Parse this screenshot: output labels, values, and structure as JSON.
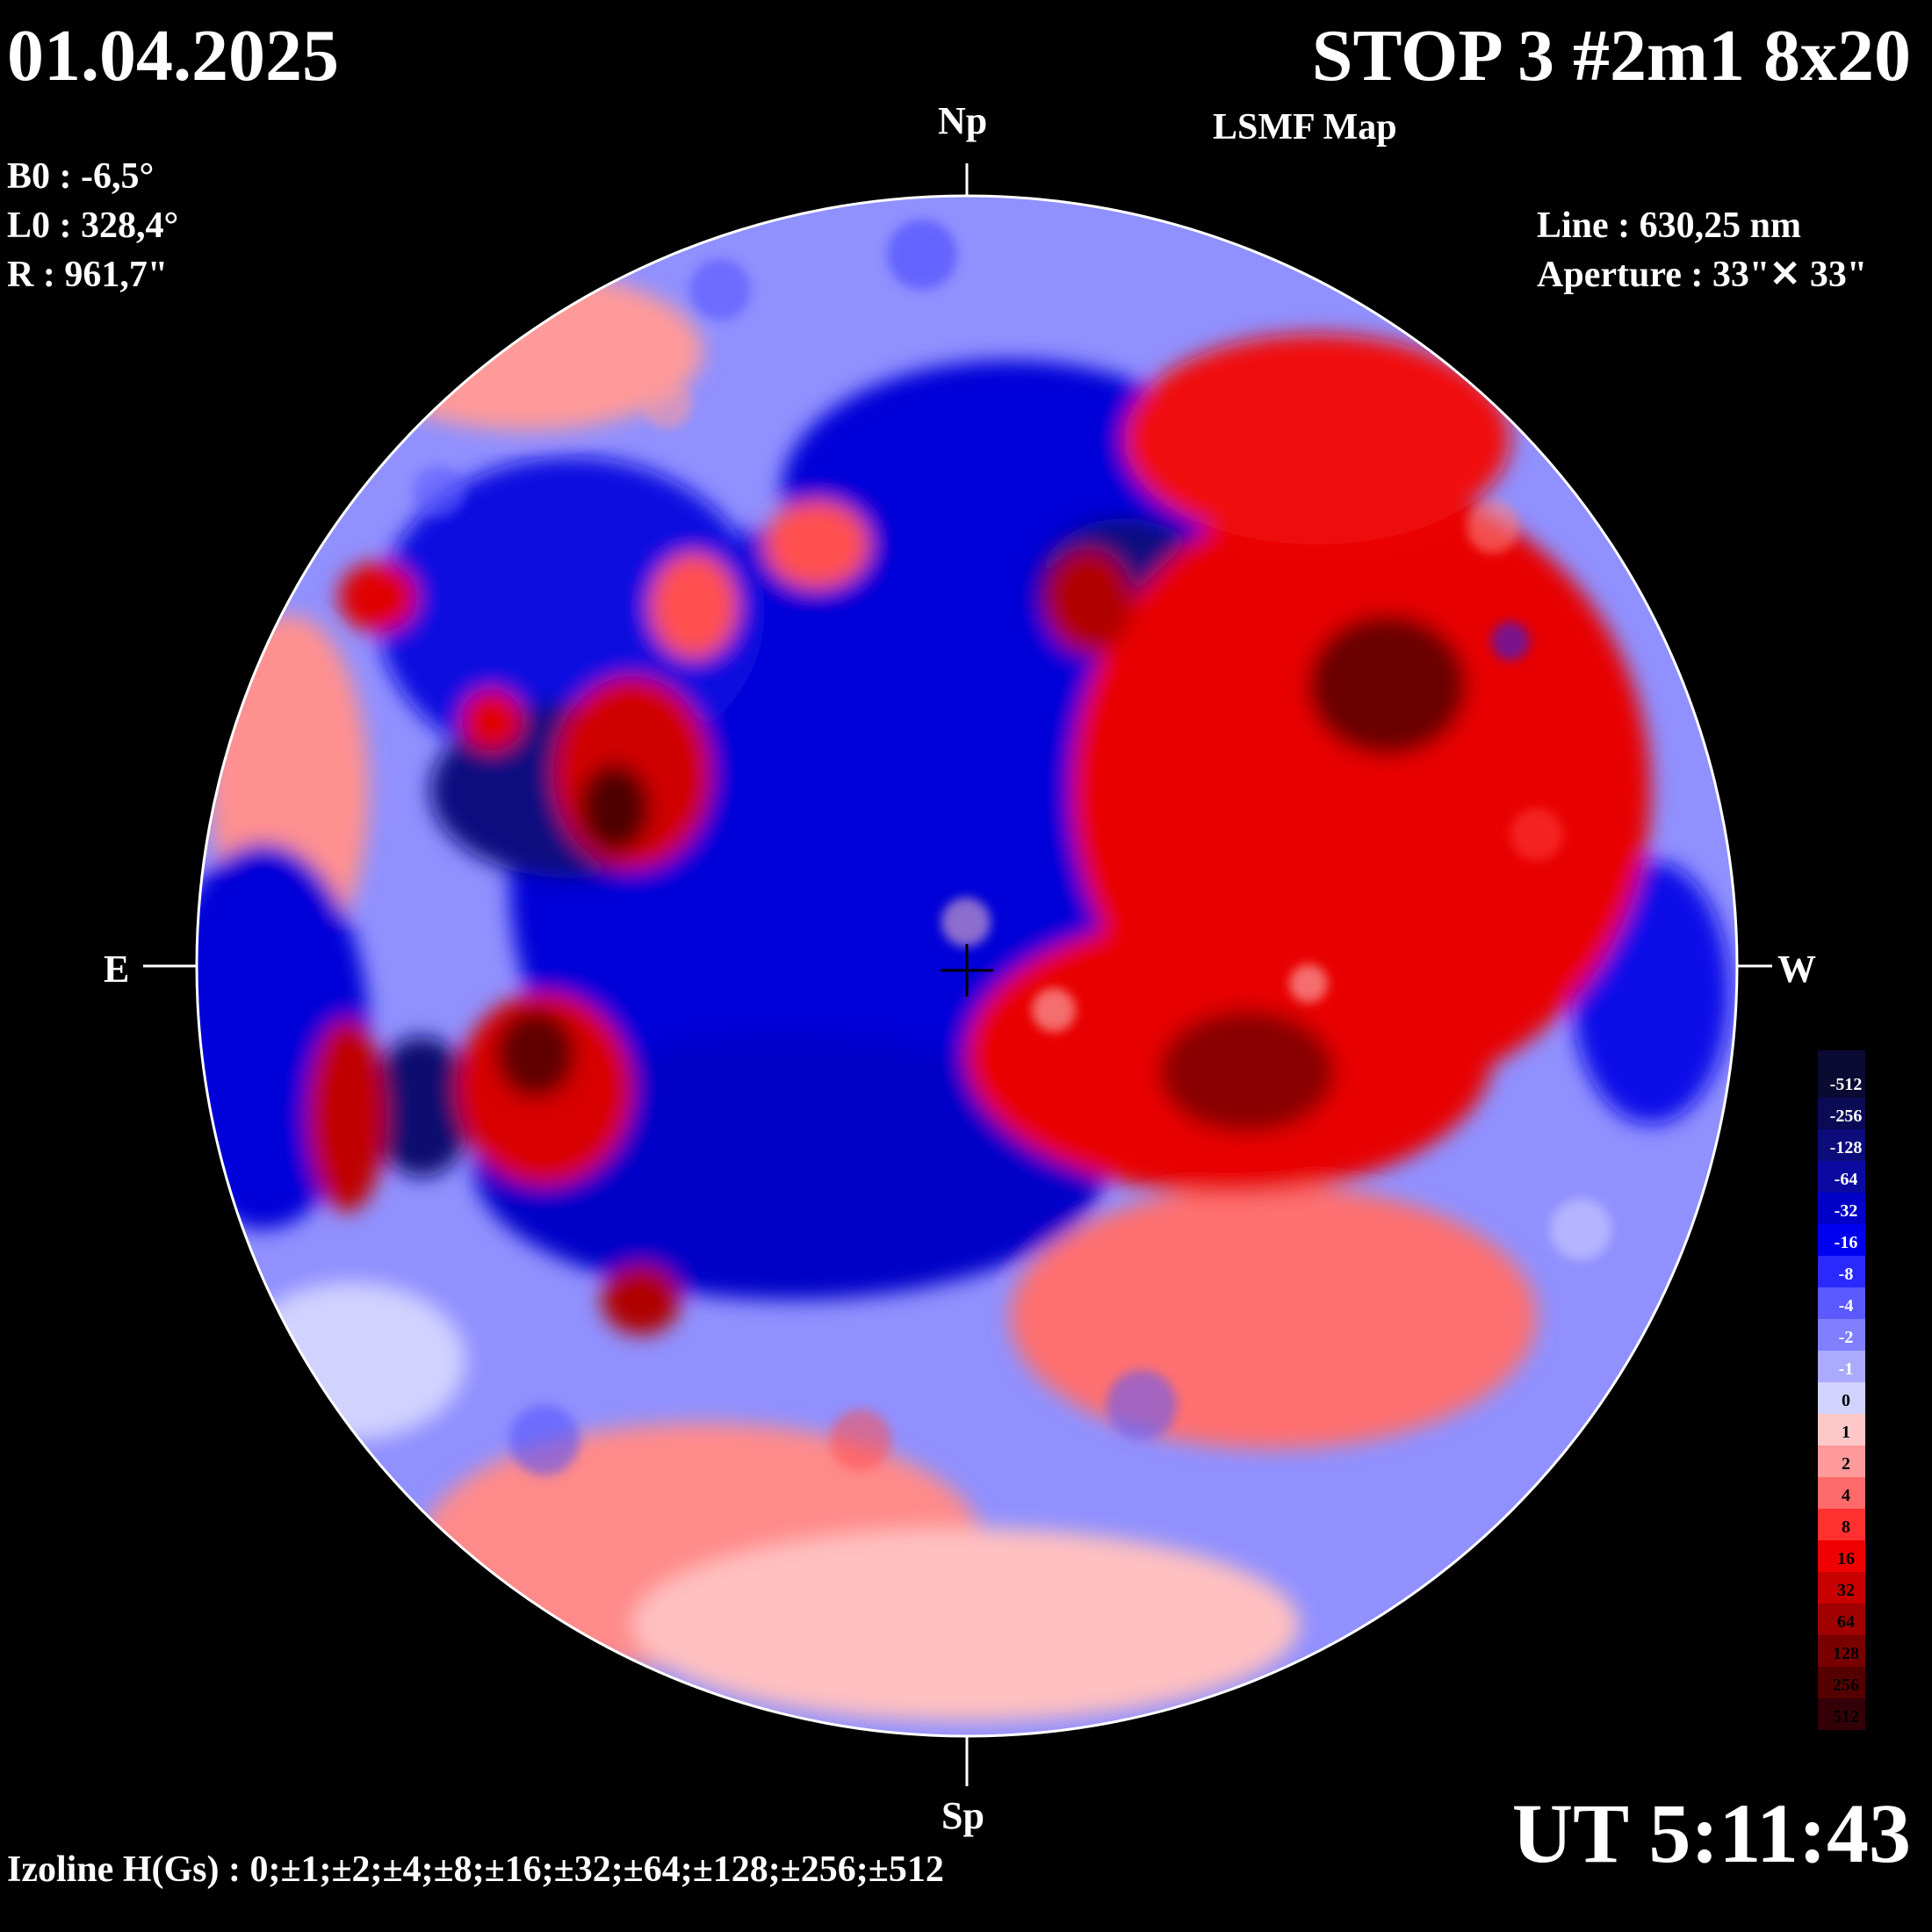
{
  "header": {
    "date": "01.04.2025",
    "title": "STOP 3 #2m1 8x20",
    "subtitle": "LSMF  Map",
    "ut": "UT 5:11:43"
  },
  "params": {
    "b0": "B0 : -6,5°",
    "l0": "L0 : 328,4°",
    "r": "R  : 961,7\"",
    "line": "Line :  630,25 nm",
    "aperture": "Aperture : 33\"✕ 33\""
  },
  "directions": {
    "north": "Np",
    "south": "Sp",
    "east": "E",
    "west": "W"
  },
  "footer": {
    "izoline": "Izoline H(Gs) : 0;±1;±2;±4;±8;±16;±32;±64;±128;±256;±512"
  },
  "legend": {
    "levels": [
      {
        "label": "-512",
        "color": "#0a0a33"
      },
      {
        "label": "-256",
        "color": "#0b0b55"
      },
      {
        "label": "-128",
        "color": "#0c0c7a"
      },
      {
        "label": "-64",
        "color": "#0a0aa0"
      },
      {
        "label": "-32",
        "color": "#0000c8"
      },
      {
        "label": "-16",
        "color": "#0000f0"
      },
      {
        "label": "-8",
        "color": "#2a2aff"
      },
      {
        "label": "-4",
        "color": "#5a5aff"
      },
      {
        "label": "-2",
        "color": "#8080ff"
      },
      {
        "label": "-1",
        "color": "#aaaaff"
      },
      {
        "label": "0",
        "color": "#d2d2ff"
      },
      {
        "label": "1",
        "color": "#ffc8c8"
      },
      {
        "label": "2",
        "color": "#ff9a9a"
      },
      {
        "label": "4",
        "color": "#ff6a6a"
      },
      {
        "label": "8",
        "color": "#ff3030"
      },
      {
        "label": "16",
        "color": "#f00000"
      },
      {
        "label": "32",
        "color": "#c80000"
      },
      {
        "label": "64",
        "color": "#a00000"
      },
      {
        "label": "128",
        "color": "#7a0000"
      },
      {
        "label": "256",
        "color": "#550000"
      },
      {
        "label": "512",
        "color": "#330008"
      }
    ]
  },
  "colors": {
    "disk_base": "#9090ff",
    "negative_strong": "#0000d8",
    "negative_core": "#0a0a70",
    "positive_strong": "#e80000",
    "positive_core": "#6a0000",
    "positive_weak": "#ff8a8a",
    "neutral": "#e6e6ff"
  }
}
